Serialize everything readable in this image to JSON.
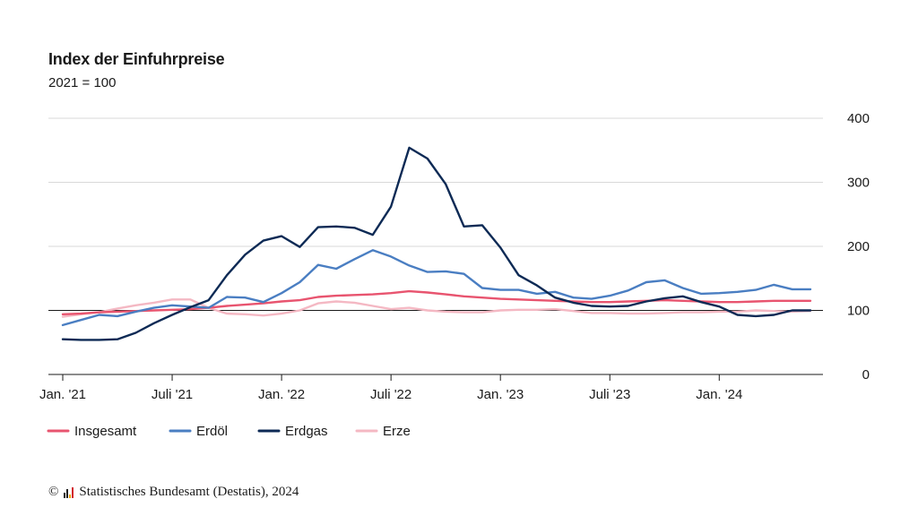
{
  "chart_data": {
    "type": "line",
    "title": "Index der Einfuhrpreise",
    "subtitle": "2021 = 100",
    "xlabel": "",
    "ylabel": "",
    "ylim": [
      0,
      400
    ],
    "yticks": [
      0,
      100,
      200,
      300,
      400
    ],
    "reference_line": 100,
    "grid": true,
    "legend_position": "bottom-left",
    "x": [
      "2021-01",
      "2021-02",
      "2021-03",
      "2021-04",
      "2021-05",
      "2021-06",
      "2021-07",
      "2021-08",
      "2021-09",
      "2021-10",
      "2021-11",
      "2021-12",
      "2022-01",
      "2022-02",
      "2022-03",
      "2022-04",
      "2022-05",
      "2022-06",
      "2022-07",
      "2022-08",
      "2022-09",
      "2022-10",
      "2022-11",
      "2022-12",
      "2023-01",
      "2023-02",
      "2023-03",
      "2023-04",
      "2023-05",
      "2023-06",
      "2023-07",
      "2023-08",
      "2023-09",
      "2023-10",
      "2023-11",
      "2023-12",
      "2024-01",
      "2024-02",
      "2024-03",
      "2024-04",
      "2024-05",
      "2024-06"
    ],
    "x_tick_labels": [
      {
        "x": "2021-01",
        "label": "Jan. '21"
      },
      {
        "x": "2021-07",
        "label": "Juli '21"
      },
      {
        "x": "2022-01",
        "label": "Jan. '22"
      },
      {
        "x": "2022-07",
        "label": "Juli '22"
      },
      {
        "x": "2023-01",
        "label": "Jan. '23"
      },
      {
        "x": "2023-07",
        "label": "Juli '23"
      },
      {
        "x": "2024-01",
        "label": "Jan. '24"
      }
    ],
    "series": [
      {
        "name": "Insgesamt",
        "color": "#e8546f",
        "values": [
          94,
          95,
          97,
          98,
          99,
          100,
          101,
          102,
          104,
          107,
          109,
          111,
          114,
          116,
          121,
          123,
          124,
          125,
          127,
          130,
          128,
          125,
          122,
          120,
          118,
          117,
          116,
          115,
          114,
          113,
          113,
          114,
          115,
          116,
          115,
          114,
          113,
          113,
          114,
          115,
          115,
          115
        ]
      },
      {
        "name": "Erdöl",
        "color": "#4a7ec2",
        "values": [
          77,
          85,
          93,
          91,
          98,
          104,
          108,
          106,
          104,
          121,
          120,
          113,
          127,
          144,
          171,
          165,
          180,
          194,
          184,
          170,
          160,
          161,
          157,
          135,
          132,
          132,
          126,
          129,
          120,
          118,
          123,
          131,
          144,
          147,
          135,
          126,
          127,
          129,
          132,
          140,
          133,
          133
        ]
      },
      {
        "name": "Erdgas",
        "color": "#0d2a55",
        "values": [
          55,
          54,
          54,
          55,
          65,
          80,
          93,
          105,
          116,
          155,
          187,
          209,
          216,
          199,
          230,
          231,
          229,
          218,
          262,
          354,
          337,
          297,
          231,
          233,
          198,
          155,
          139,
          120,
          112,
          107,
          106,
          107,
          114,
          119,
          122,
          113,
          106,
          93,
          91,
          93,
          100,
          100
        ]
      },
      {
        "name": "Erze",
        "color": "#f4b8c3",
        "values": [
          90,
          94,
          97,
          103,
          108,
          112,
          117,
          117,
          104,
          95,
          94,
          92,
          95,
          100,
          111,
          114,
          112,
          107,
          102,
          104,
          100,
          98,
          97,
          97,
          100,
          101,
          101,
          102,
          99,
          96,
          96,
          95,
          95,
          96,
          97,
          97,
          98,
          98,
          100,
          99,
          98,
          99
        ]
      }
    ]
  },
  "footer": {
    "copyright_symbol": "©",
    "source": "Statistisches Bundesamt (Destatis), 2024"
  }
}
